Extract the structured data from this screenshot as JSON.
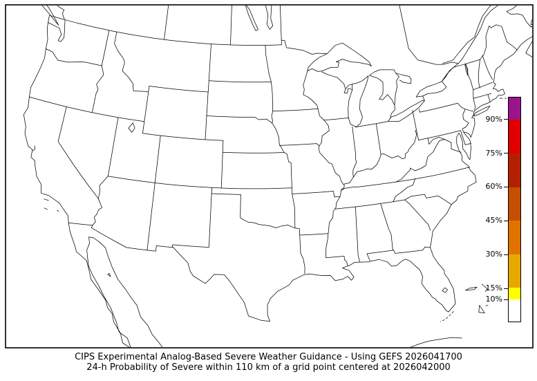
{
  "figure": {
    "background": "#ffffff"
  },
  "caption": {
    "line1": "CIPS Experimental Analog-Based Severe Weather Guidance - Using GEFS 2026041700",
    "line2": "24-h Probability of Severe within 110 km of a grid point centered at 2026042000"
  },
  "colorbar": {
    "orientation": "vertical",
    "range_min": 0,
    "range_max": 100,
    "unit": "%",
    "tick_labels": [
      "90%",
      "75%",
      "60%",
      "45%",
      "30%",
      "15%",
      "10%"
    ],
    "tick_values": [
      90,
      75,
      60,
      45,
      30,
      15,
      10
    ],
    "segments": [
      {
        "from": 0,
        "to": 10,
        "color": "#ffffff"
      },
      {
        "from": 10,
        "to": 15,
        "color": "#ffff00"
      },
      {
        "from": 15,
        "to": 30,
        "color": "#e7a900"
      },
      {
        "from": 30,
        "to": 45,
        "color": "#e07300"
      },
      {
        "from": 45,
        "to": 60,
        "color": "#c44f00"
      },
      {
        "from": 60,
        "to": 75,
        "color": "#b22000"
      },
      {
        "from": 75,
        "to": 90,
        "color": "#df0000"
      },
      {
        "from": 90,
        "to": 100,
        "color": "#9b148c"
      }
    ],
    "border_color": "#000000",
    "tick_color": "#000000"
  },
  "map": {
    "land_color": "#ffffff",
    "line_color": "#000000",
    "frame_color": "#000000"
  }
}
